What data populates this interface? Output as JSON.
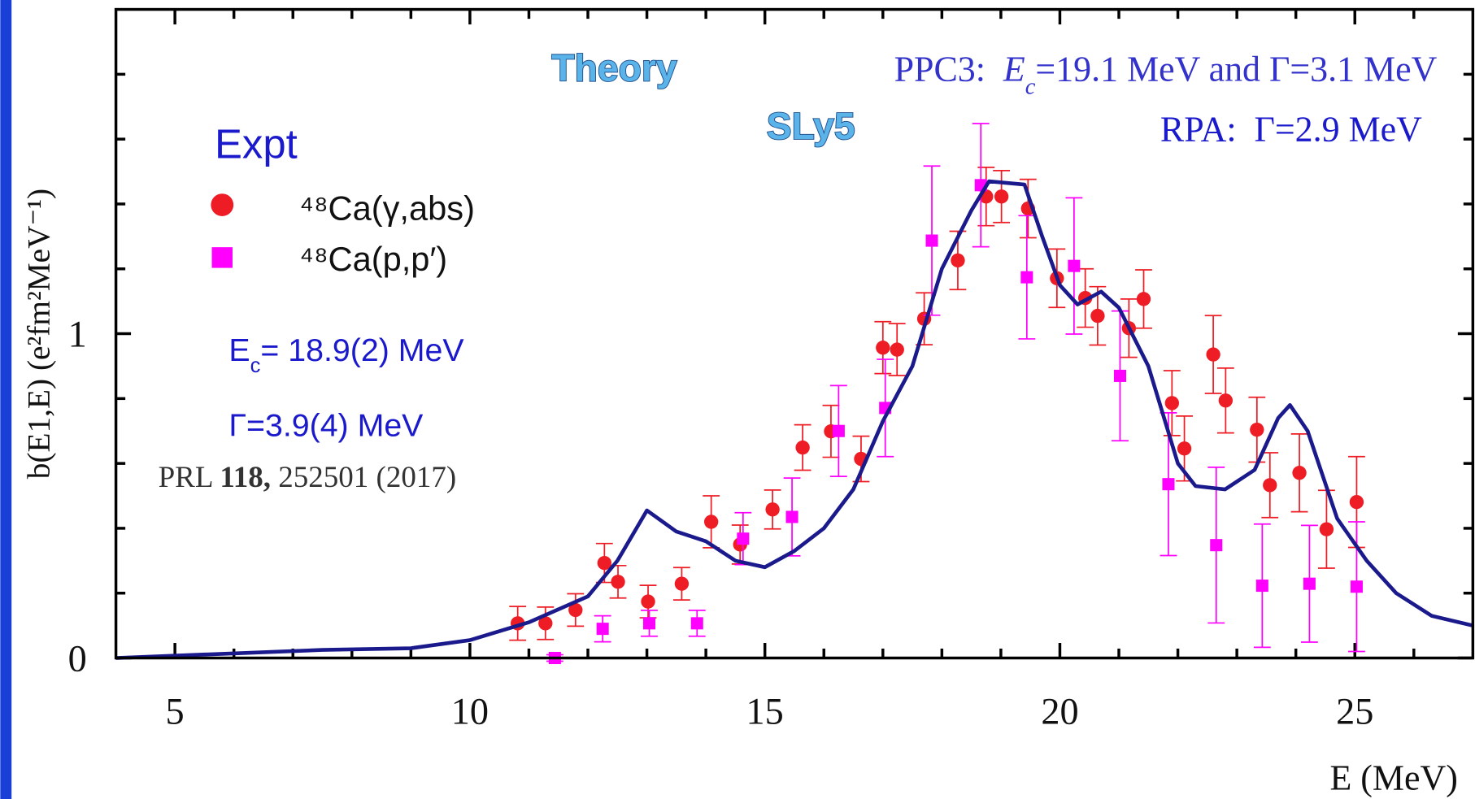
{
  "chart_data": {
    "type": "scatter",
    "xlabel": "E (MeV)",
    "ylabel": "b(E1,E) (e²fm²MeV⁻¹)",
    "xlim": [
      4,
      27
    ],
    "ylim": [
      0,
      2
    ],
    "xticks": [
      5,
      10,
      15,
      20,
      25
    ],
    "xticks_minor": [
      6,
      7,
      8,
      9,
      11,
      12,
      13,
      14,
      16,
      17,
      18,
      19,
      21,
      22,
      23,
      24,
      26
    ],
    "yticks": [
      0,
      1
    ],
    "yticks_minor": [
      0.2,
      0.4,
      0.6,
      0.8,
      1.2,
      1.4,
      1.6,
      1.8
    ],
    "legend_title": "Expt",
    "series": [
      {
        "name": "⁴⁸Ca(γ,abs)",
        "type": "scatter",
        "marker": "circle",
        "color": "#ee1c24",
        "x": [
          10.81,
          11.28,
          11.79,
          12.28,
          12.51,
          13.02,
          13.59,
          14.09,
          14.58,
          15.13,
          15.64,
          16.12,
          16.63,
          17.0,
          17.24,
          17.7,
          18.27,
          18.75,
          19.01,
          19.46,
          19.95,
          20.43,
          20.64,
          21.17,
          21.42,
          21.9,
          22.11,
          22.6,
          22.81,
          23.34,
          23.56,
          24.06,
          24.52,
          25.03
        ],
        "values": [
          0.107,
          0.107,
          0.148,
          0.293,
          0.235,
          0.174,
          0.229,
          0.42,
          0.35,
          0.458,
          0.649,
          0.699,
          0.614,
          0.957,
          0.951,
          1.046,
          1.226,
          1.423,
          1.423,
          1.386,
          1.171,
          1.11,
          1.055,
          1.017,
          1.107,
          0.786,
          0.646,
          0.936,
          0.794,
          0.704,
          0.533,
          0.571,
          0.397,
          0.481
        ],
        "errors": [
          0.052,
          0.05,
          0.05,
          0.06,
          0.05,
          0.05,
          0.05,
          0.08,
          0.06,
          0.06,
          0.07,
          0.08,
          0.07,
          0.08,
          0.08,
          0.08,
          0.09,
          0.09,
          0.08,
          0.09,
          0.09,
          0.09,
          0.09,
          0.09,
          0.09,
          0.1,
          0.1,
          0.12,
          0.1,
          0.1,
          0.1,
          0.12,
          0.12,
          0.14
        ]
      },
      {
        "name": "⁴⁸Ca(p,p′)",
        "type": "scatter",
        "marker": "square",
        "color": "#ff00ff",
        "x": [
          11.44,
          12.25,
          13.04,
          13.85,
          14.63,
          15.46,
          16.25,
          17.04,
          17.83,
          18.66,
          19.44,
          20.24,
          21.02,
          21.84,
          22.65,
          23.43,
          24.23,
          25.03
        ],
        "values": [
          0,
          0.09,
          0.107,
          0.107,
          0.368,
          0.435,
          0.7,
          0.771,
          1.287,
          1.458,
          1.174,
          1.209,
          0.87,
          0.536,
          0.348,
          0.223,
          0.229,
          0.22
        ],
        "errors": [
          0.01,
          0.04,
          0.04,
          0.04,
          0.08,
          0.12,
          0.14,
          0.15,
          0.23,
          0.19,
          0.19,
          0.21,
          0.2,
          0.22,
          0.24,
          0.19,
          0.18,
          0.2
        ]
      },
      {
        "type": "line",
        "color": "#1a1a8c",
        "x": [
          4,
          7.5,
          9,
          10,
          11,
          12,
          12.5,
          13,
          13.5,
          14,
          14.5,
          15,
          15.5,
          16,
          16.5,
          17,
          17.5,
          18,
          18.5,
          18.8,
          19.4,
          19.7,
          20,
          20.3,
          20.7,
          21,
          21.5,
          22,
          22.3,
          22.8,
          23.3,
          23.7,
          23.9,
          24.2,
          24.7,
          25.2,
          25.7,
          26.3,
          27
        ],
        "values": [
          0.0,
          0.025,
          0.03,
          0.055,
          0.11,
          0.19,
          0.3,
          0.455,
          0.39,
          0.36,
          0.3,
          0.28,
          0.33,
          0.4,
          0.52,
          0.73,
          0.9,
          1.2,
          1.38,
          1.47,
          1.46,
          1.3,
          1.15,
          1.09,
          1.13,
          1.08,
          0.9,
          0.6,
          0.53,
          0.52,
          0.58,
          0.74,
          0.78,
          0.7,
          0.43,
          0.3,
          0.2,
          0.13,
          0.1
        ]
      }
    ],
    "annotations": [
      {
        "style": "outline",
        "parts": [
          {
            "text": "Theory"
          }
        ]
      },
      {
        "style": "outline",
        "parts": [
          {
            "text": "SLy5"
          }
        ]
      },
      {
        "style": "serif",
        "color": "#3333cc",
        "parts": [
          {
            "text": "PPC3:  "
          },
          {
            "text": "E",
            "italic": true
          },
          {
            "text": "c",
            "italic": true,
            "sub": true
          },
          {
            "text": "=19.1 MeV and Γ=3.1 MeV"
          }
        ]
      },
      {
        "style": "serif",
        "color": "#1a1acc",
        "parts": [
          {
            "text": "RPA:  Γ=2.9 MeV"
          }
        ]
      },
      {
        "style": "sans",
        "color": "#1a1acc",
        "parts": [
          {
            "text": "E"
          },
          {
            "text": "c",
            "sub": true
          },
          {
            "text": "= 18.9(2) MeV"
          }
        ]
      },
      {
        "style": "sans",
        "color": "#1a1acc",
        "parts": [
          {
            "text": "Γ=3.9(4) MeV"
          }
        ]
      },
      {
        "style": "serif",
        "color": "#333333",
        "parts": [
          {
            "text": "PRL "
          },
          {
            "text": "118,",
            "bold": true
          },
          {
            "text": " 252501 (2017)"
          }
        ]
      }
    ]
  }
}
